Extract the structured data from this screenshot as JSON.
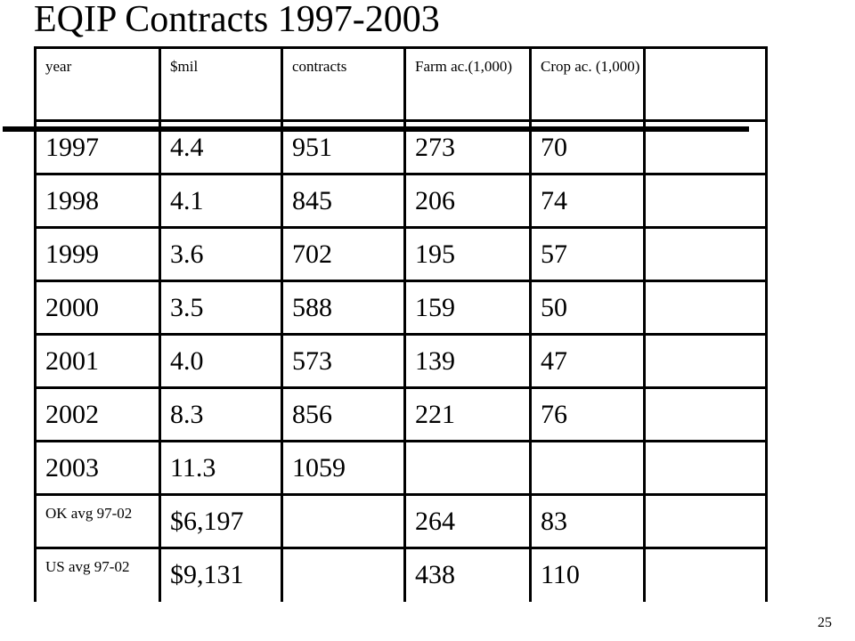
{
  "slide": {
    "title": "EQIP Contracts 1997-2003",
    "page_number": "25"
  },
  "table": {
    "headers": [
      "year",
      "$mil",
      "contracts",
      "Farm ac.(1,000)",
      "Crop ac. (1,000)",
      ""
    ],
    "rows": [
      [
        "1997",
        "4.4",
        "951",
        "273",
        "70",
        ""
      ],
      [
        "1998",
        "4.1",
        "845",
        "206",
        "74",
        ""
      ],
      [
        "1999",
        "3.6",
        "702",
        "195",
        "57",
        ""
      ],
      [
        "2000",
        "3.5",
        "588",
        "159",
        "50",
        ""
      ],
      [
        "2001",
        "4.0",
        "573",
        "139",
        "47",
        ""
      ],
      [
        "2002",
        "8.3",
        "856",
        "221",
        "76",
        ""
      ],
      [
        "2003",
        "11.3",
        "1059",
        "",
        "",
        ""
      ],
      [
        "OK avg 97-02",
        "$6,197",
        "",
        "264",
        "83",
        ""
      ],
      [
        "US avg 97-02",
        "$9,131",
        "",
        "438",
        "110",
        ""
      ]
    ]
  }
}
